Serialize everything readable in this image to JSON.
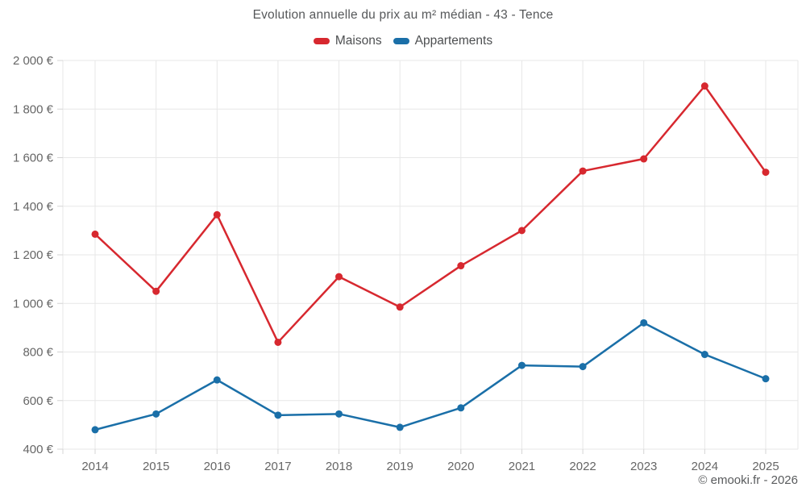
{
  "title": "Evolution annuelle du prix au m² médian - 43 - Tence",
  "legend": [
    {
      "label": "Maisons",
      "color": "#d7282f"
    },
    {
      "label": "Appartements",
      "color": "#1a6fa8"
    }
  ],
  "footer": "© emooki.fr - 2026",
  "colors": {
    "maisons": "#d7282f",
    "appartements": "#1a6fa8",
    "grid": "#e7e7e7",
    "tick": "#d4d4d4",
    "axis_text": "#666666"
  },
  "chart_data": {
    "type": "line",
    "title": "Evolution annuelle du prix au m² médian - 43 - Tence",
    "categories": [
      "2014",
      "2015",
      "2016",
      "2017",
      "2018",
      "2019",
      "2020",
      "2021",
      "2022",
      "2023",
      "2024",
      "2025"
    ],
    "series": [
      {
        "name": "Maisons",
        "color": "#d7282f",
        "values": [
          1285,
          1050,
          1365,
          840,
          1110,
          985,
          1155,
          1300,
          1545,
          1595,
          1895,
          1540
        ]
      },
      {
        "name": "Appartements",
        "color": "#1a6fa8",
        "values": [
          480,
          545,
          685,
          540,
          545,
          490,
          570,
          745,
          740,
          920,
          790,
          690
        ]
      }
    ],
    "xlabel": "",
    "ylabel": "",
    "ytick_suffix": " €",
    "ylim": [
      400,
      2000
    ],
    "ytick_step": 200,
    "grid": true,
    "legend_position": "top",
    "marker": "circle"
  }
}
